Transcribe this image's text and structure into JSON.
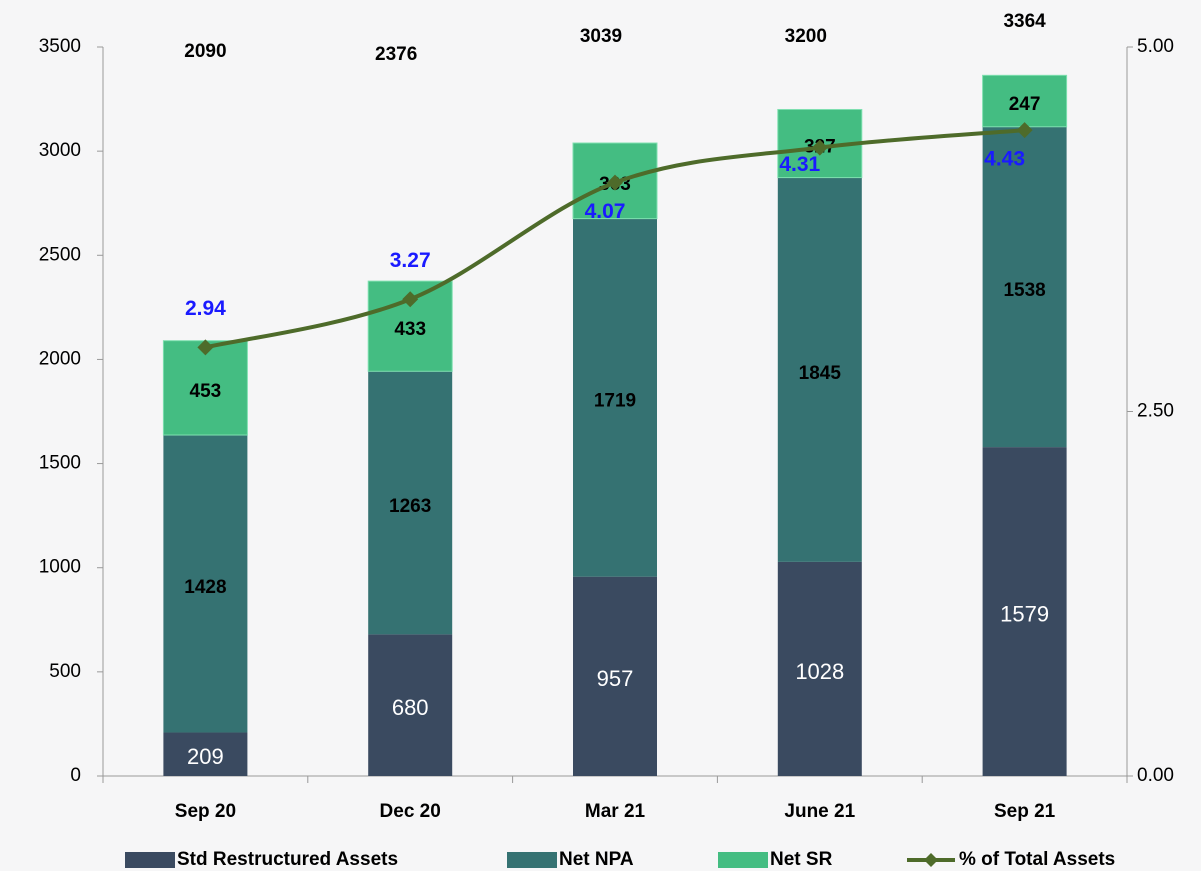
{
  "chart_data": {
    "type": "stacked-bar-line",
    "categories": [
      "Sep 20",
      "Dec 20",
      "Mar 21",
      "June 21",
      "Sep 21"
    ],
    "series": [
      {
        "name": "Std Restructured Assets",
        "color": "#3a4a60",
        "values": [
          209,
          680,
          957,
          1028,
          1579
        ]
      },
      {
        "name": "Net NPA",
        "color": "#357272",
        "values": [
          1428,
          1263,
          1719,
          1845,
          1538
        ]
      },
      {
        "name": "Net SR",
        "color": "#44bd82",
        "values": [
          453,
          433,
          363,
          327,
          247
        ]
      },
      {
        "name": "% of Total Assets",
        "color": "#4e6b2a",
        "axis": "y2",
        "values": [
          2.94,
          3.27,
          4.07,
          4.31,
          4.43
        ],
        "label_color": "#1a1aff"
      }
    ],
    "totals": [
      2090,
      2376,
      3039,
      3200,
      3364
    ],
    "ylim": [
      0,
      3500
    ],
    "yticks": [
      0,
      500,
      1000,
      1500,
      2000,
      2500,
      3000,
      3500
    ],
    "y2lim": [
      0,
      5
    ],
    "y2ticks": [
      {
        "value": 0,
        "label": "0.00"
      },
      {
        "value": 2.5,
        "label": "2.50"
      },
      {
        "value": 5,
        "label": "5.00"
      }
    ],
    "legend": "bottom",
    "grid": false
  }
}
